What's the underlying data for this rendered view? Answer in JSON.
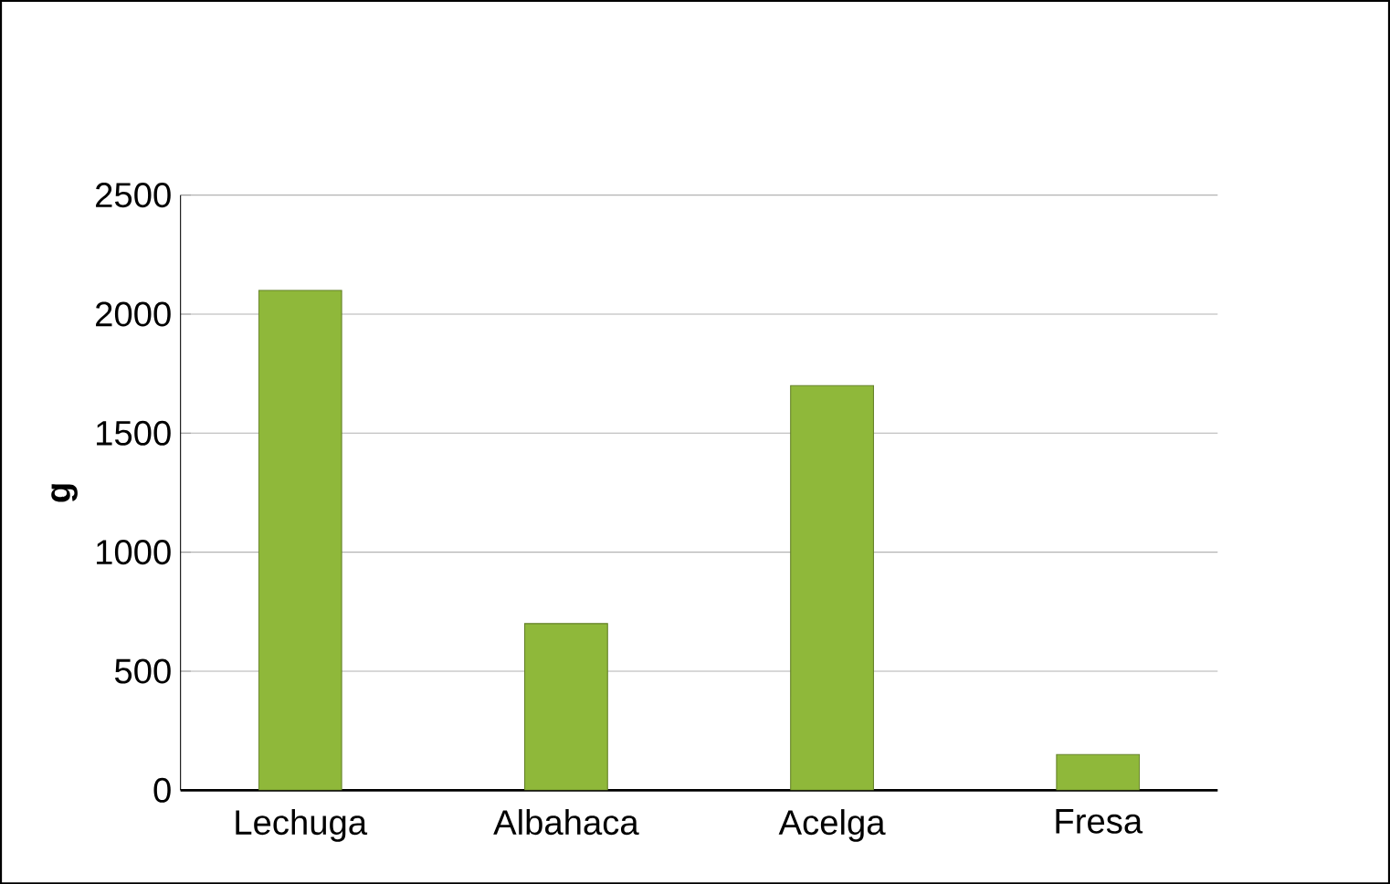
{
  "chart_data": {
    "type": "bar",
    "ylabel": "g",
    "categories": [
      "Lechuga",
      "Albahaca",
      "Acelga",
      "Fresa"
    ],
    "values": [
      2100,
      700,
      1700,
      150
    ],
    "color": "#8fb83a",
    "ylim": [
      0,
      2500
    ],
    "yticks": [
      0,
      500,
      1000,
      1500,
      2000,
      2500
    ],
    "grid": "y"
  }
}
